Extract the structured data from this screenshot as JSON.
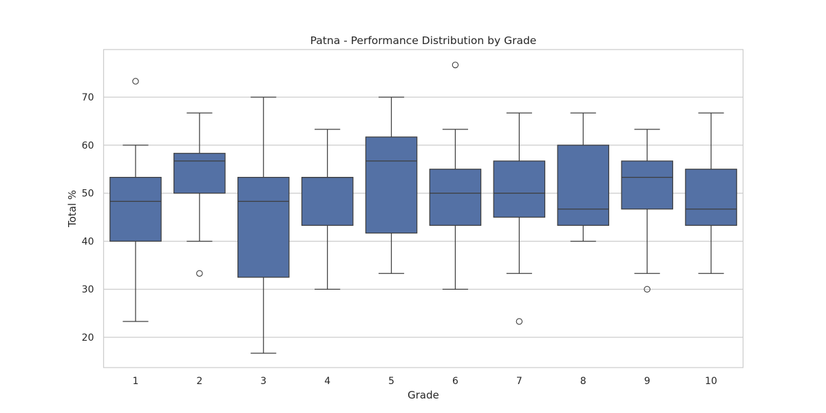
{
  "chart_data": {
    "type": "box",
    "title": "Patna - Performance Distribution by Grade",
    "xlabel": "Grade",
    "ylabel": "Total %",
    "categories": [
      "1",
      "2",
      "3",
      "4",
      "5",
      "6",
      "7",
      "8",
      "9",
      "10"
    ],
    "ylim": [
      13.7,
      79.9
    ],
    "yticks": [
      20,
      30,
      40,
      50,
      60,
      70
    ],
    "grid": true,
    "legend": "none",
    "box_color": "#5471a5",
    "line_color": "#3d3d3d",
    "grid_color": "#cccccc",
    "boxes": [
      {
        "category": "1",
        "whisker_low": 23.3,
        "q1": 40.0,
        "median": 48.3,
        "q3": 53.3,
        "whisker_high": 60.0,
        "outliers": [
          73.3
        ]
      },
      {
        "category": "2",
        "whisker_low": 40.0,
        "q1": 50.0,
        "median": 56.7,
        "q3": 58.3,
        "whisker_high": 66.7,
        "outliers": [
          33.3
        ]
      },
      {
        "category": "3",
        "whisker_low": 16.7,
        "q1": 32.5,
        "median": 48.3,
        "q3": 53.3,
        "whisker_high": 70.0,
        "outliers": []
      },
      {
        "category": "4",
        "whisker_low": 30.0,
        "q1": 43.3,
        "median": 53.3,
        "q3": 53.3,
        "whisker_high": 63.3,
        "outliers": []
      },
      {
        "category": "5",
        "whisker_low": 33.3,
        "q1": 41.7,
        "median": 56.7,
        "q3": 61.7,
        "whisker_high": 70.0,
        "outliers": []
      },
      {
        "category": "6",
        "whisker_low": 30.0,
        "q1": 43.3,
        "median": 50.0,
        "q3": 55.0,
        "whisker_high": 63.3,
        "outliers": [
          76.7
        ]
      },
      {
        "category": "7",
        "whisker_low": 33.3,
        "q1": 45.0,
        "median": 50.0,
        "q3": 56.7,
        "whisker_high": 66.7,
        "outliers": [
          23.3
        ]
      },
      {
        "category": "8",
        "whisker_low": 40.0,
        "q1": 43.3,
        "median": 46.7,
        "q3": 60.0,
        "whisker_high": 66.7,
        "outliers": []
      },
      {
        "category": "9",
        "whisker_low": 33.3,
        "q1": 46.7,
        "median": 53.3,
        "q3": 56.7,
        "whisker_high": 63.3,
        "outliers": [
          30.0
        ]
      },
      {
        "category": "10",
        "whisker_low": 33.3,
        "q1": 43.3,
        "median": 46.7,
        "q3": 55.0,
        "whisker_high": 66.7,
        "outliers": []
      }
    ]
  }
}
